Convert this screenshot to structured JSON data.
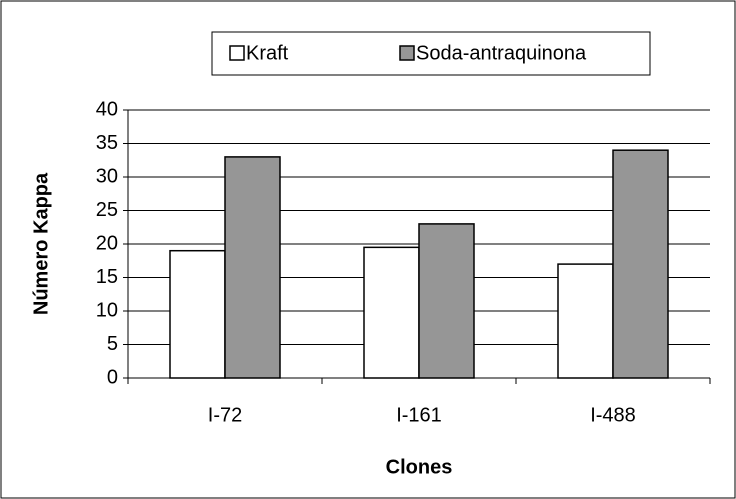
{
  "chart_data": {
    "type": "bar",
    "categories": [
      "I-72",
      "I-161",
      "I-488"
    ],
    "series": [
      {
        "name": "Kraft",
        "color": "#ffffff",
        "values": [
          19,
          19.5,
          17
        ]
      },
      {
        "name": "Soda-antraquinona",
        "color": "#969696",
        "values": [
          33,
          23,
          34
        ]
      }
    ],
    "xlabel": "Clones",
    "ylabel": "Número Kappa",
    "ylim": [
      0,
      40
    ],
    "yticks": [
      0,
      5,
      10,
      15,
      20,
      25,
      30,
      35,
      40
    ],
    "grid": true,
    "legend": "top"
  }
}
